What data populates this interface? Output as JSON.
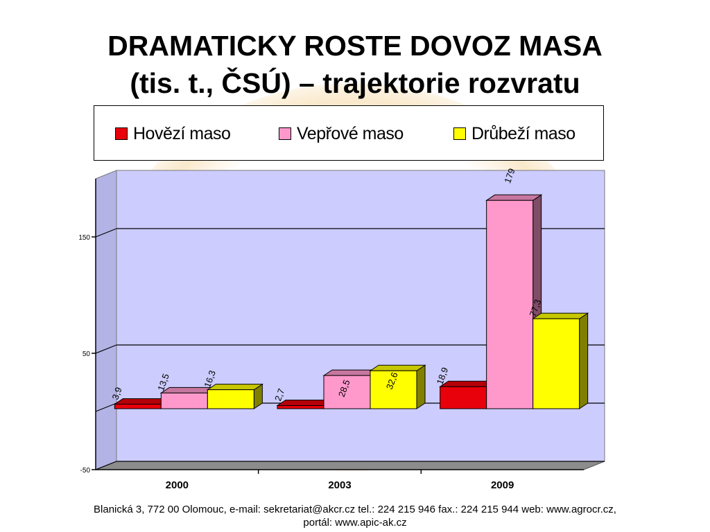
{
  "slide": {
    "title_line1": "DRAMATICKY  ROSTE  DOVOZ   MASA",
    "title_line2": "(tis. t., ČSÚ) – trajektorie rozvratu",
    "footer_line1": "Blanická 3, 772 00 Olomouc, e-mail: sekretariat@akcr.cz tel.: 224 215 946 fax.: 224 215 944 web: www.agrocr.cz,",
    "footer_line2": "portál: www.apic-ak.cz"
  },
  "chart_data": {
    "type": "bar",
    "title": "",
    "xlabel": "",
    "ylabel": "",
    "categories": [
      "2000",
      "2003",
      "2009"
    ],
    "series": [
      {
        "name": "Hovězí maso",
        "values": [
          3.9,
          2.7,
          18.9
        ],
        "labels": [
          "3,9",
          "2,7",
          "18,9"
        ],
        "color": "#e8000b"
      },
      {
        "name": "Vepřové maso",
        "values": [
          13.5,
          28.5,
          179
        ],
        "labels": [
          "13,5",
          "28,5",
          "179"
        ],
        "color": "#ff99cc"
      },
      {
        "name": "Drůbeží maso",
        "values": [
          16.3,
          32.6,
          77.3
        ],
        "labels": [
          "16,3",
          "32,6",
          "77,3"
        ],
        "color": "#ffff00"
      }
    ],
    "ylim": [
      -50,
      200
    ],
    "yticks": [
      -50,
      50,
      150
    ],
    "ytick_labels": [
      "-50",
      "50",
      "150"
    ],
    "grid": true,
    "legend_position": "top",
    "plot_background": "#ccccff",
    "style": "3d-bar"
  }
}
